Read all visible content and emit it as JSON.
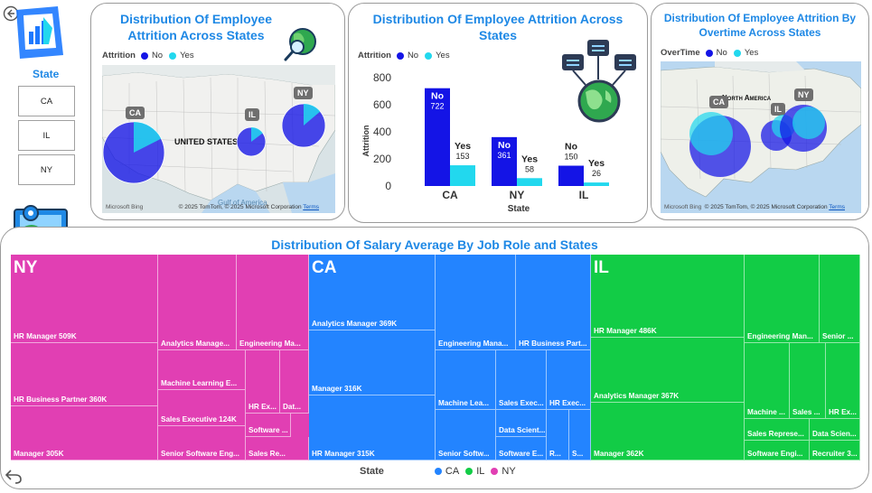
{
  "slicer": {
    "title": "State",
    "options": [
      "CA",
      "IL",
      "NY"
    ]
  },
  "colors": {
    "no": "#1414e6",
    "yes": "#22d8ee",
    "title": "#1e88e5",
    "ny": "#e13fb3",
    "ca": "#2384ff",
    "il": "#12cc46"
  },
  "map1": {
    "title": "Distribution Of Employee Attrition Across States",
    "legend_title": "Attrition",
    "legend_items": [
      "No",
      "Yes"
    ],
    "country_label": "UNITED STATES",
    "state_labels": [
      "CA",
      "IL",
      "NY"
    ],
    "ca_no_share": 0.825,
    "il_no_share": 0.852,
    "ny_no_share": 0.862,
    "gulf_label": "Gulf of America",
    "provider": "Microsoft Bing",
    "copyright": "© 2025 TomTom, © 2025 Microsoft Corporation",
    "terms": "Terms"
  },
  "bar_chart": {
    "title": "Distribution Of Employee Attrition Across States",
    "legend_title": "Attrition",
    "legend_items": [
      "No",
      "Yes"
    ],
    "ylabel": "Attrition",
    "xlabel": "State",
    "y_ticks": [
      "800",
      "600",
      "400",
      "200",
      "0"
    ],
    "categories": [
      "CA",
      "NY",
      "IL"
    ],
    "series_labels": [
      "No",
      "Yes"
    ],
    "no_labels": [
      "722",
      "361",
      "150"
    ],
    "yes_labels": [
      "153",
      "58",
      "26"
    ]
  },
  "chart_data": {
    "type": "bar",
    "title": "Distribution Of Employee Attrition Across States",
    "categories": [
      "CA",
      "NY",
      "IL"
    ],
    "series": [
      {
        "name": "No",
        "values": [
          722,
          361,
          150
        ]
      },
      {
        "name": "Yes",
        "values": [
          153,
          58,
          26
        ]
      }
    ],
    "xlabel": "State",
    "ylabel": "Attrition",
    "ylim": [
      0,
      800
    ],
    "legend": "top-left"
  },
  "map2": {
    "title": "Distribution Of Employee Attrition By Overtime Across States",
    "legend_title": "OverTime",
    "legend_items": [
      "No",
      "Yes"
    ],
    "region_label": "North America",
    "state_labels": [
      "CA",
      "IL",
      "NY"
    ],
    "provider": "Microsoft Bing",
    "copyright": "© 2025 TomTom, © 2025 Microsoft Corporation",
    "terms": "Terms"
  },
  "treemap": {
    "title": "Distribution Of Salary Average By Job Role and States",
    "legend_title": "State",
    "legend_items": [
      "CA",
      "IL",
      "NY"
    ],
    "groups": [
      {
        "state": "NY",
        "cells": [
          "HR Manager 509K",
          "HR Business Partner 360K",
          "Manager 305K",
          "Analytics Manage...",
          "Engineering Ma...",
          "Machine Learning E...",
          "Sales Executive 124K",
          "HR Ex...",
          "Dat...",
          "Software ...",
          "Senior Software Eng...",
          "Sales Re..."
        ]
      },
      {
        "state": "CA",
        "cells": [
          "Analytics Manager 369K",
          "Manager 316K",
          "HR Manager 315K",
          "Engineering Mana...",
          "HR Business Part...",
          "Machine Lea...",
          "Sales Exec...",
          "HR Exec...",
          "Data Scient...",
          "Senior Softw...",
          "Software E...",
          "R...",
          "S..."
        ]
      },
      {
        "state": "IL",
        "cells": [
          "HR Manager 486K",
          "Analytics Manager 367K",
          "Manager 362K",
          "Engineering Man...",
          "Senior ...",
          "Machine ...",
          "Sales ...",
          "HR Ex...",
          "Sales Represe...",
          "Data Scien...",
          "Software Engi...",
          "Recruiter 3..."
        ]
      }
    ]
  }
}
